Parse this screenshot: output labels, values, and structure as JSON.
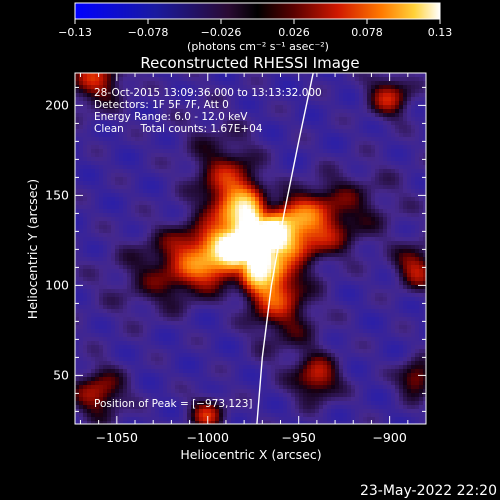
{
  "chart_data": {
    "type": "heatmap",
    "title": "Reconstructed RHESSI Image",
    "xlabel": "Heliocentric X (arcsec)",
    "ylabel": "Heliocentric Y (arcsec)",
    "xlim": [
      -1073,
      -880
    ],
    "ylim": [
      23,
      218
    ],
    "xticks": [
      -1050,
      -1000,
      -950,
      -900
    ],
    "xtick_labels": [
      "−1050",
      "−1000",
      "−950",
      "−900"
    ],
    "yticks": [
      50,
      100,
      150,
      200
    ],
    "ytick_labels": [
      "50",
      "100",
      "150",
      "200"
    ],
    "colorbar": {
      "range": [
        -0.13,
        0.13
      ],
      "ticks": [
        -0.13,
        -0.078,
        -0.026,
        0.026,
        0.078,
        0.13
      ],
      "tick_labels": [
        "−0.13",
        "−0.078",
        "−0.026",
        "0.026",
        "0.078",
        "0.13"
      ],
      "units_label": "(photons cm⁻² s⁻¹ asec⁻²)",
      "colors": [
        "#0000ff",
        "#000000",
        "#ff4400",
        "#ffcc00",
        "#ffffff"
      ]
    },
    "annotations": [
      "28-Oct-2015 13:09:36.000 to 13:13:32.000",
      "Detectors: 1F 5F 7F, Att 0",
      "Energy Range: 6.0 - 12.0 keV",
      "Clean     Total counts: 1.67E+04"
    ],
    "peak_label": "Position of Peak = [−973,123]",
    "peak": [
      -973,
      123
    ],
    "source_core": {
      "x": -975,
      "y": 124,
      "peak_value": 0.13
    },
    "limb_curve": [
      [
        -942,
        218
      ],
      [
        -950,
        180
      ],
      [
        -958,
        140
      ],
      [
        -965,
        100
      ],
      [
        -970,
        60
      ],
      [
        -973,
        23
      ]
    ],
    "footer_timestamp": "23-May-2022 22:20"
  }
}
